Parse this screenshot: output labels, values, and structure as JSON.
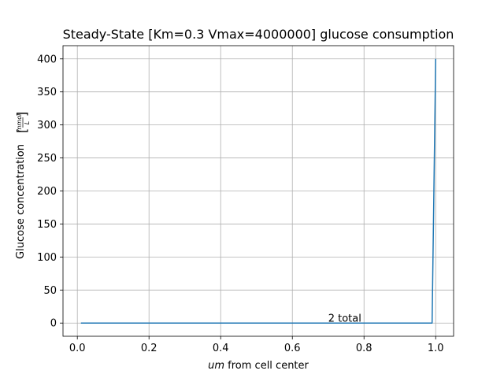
{
  "chart_data": {
    "type": "line",
    "title": "Steady-State [Km=0.3 Vmax=4000000] glucose consumption",
    "xlabel_italic": "um",
    "xlabel_rest": " from cell center",
    "ylabel": "Glucose concentration",
    "ylabel_unit_num": "mmol",
    "ylabel_unit_den": "L",
    "xlim": [
      -0.04,
      1.05
    ],
    "ylim": [
      -20,
      420
    ],
    "xticks": [
      0.0,
      0.2,
      0.4,
      0.6,
      0.8,
      1.0
    ],
    "xtick_labels": [
      "0.0",
      "0.2",
      "0.4",
      "0.6",
      "0.8",
      "1.0"
    ],
    "yticks": [
      0,
      50,
      100,
      150,
      200,
      250,
      300,
      350,
      400
    ],
    "ytick_labels": [
      "0",
      "50",
      "100",
      "150",
      "200",
      "250",
      "300",
      "350",
      "400"
    ],
    "grid": true,
    "series": [
      {
        "color": "#1f77b4",
        "x": [
          0.01,
          0.2,
          0.4,
          0.6,
          0.8,
          0.99,
          1.0
        ],
        "y": [
          0,
          0,
          0,
          0,
          0,
          0,
          400
        ]
      }
    ],
    "annotations": [
      {
        "text": "2 total",
        "x": 0.7,
        "y": 2
      }
    ]
  }
}
